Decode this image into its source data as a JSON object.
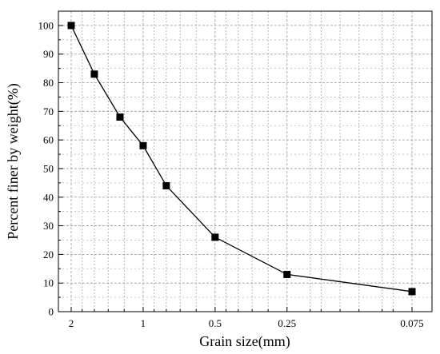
{
  "chart_data": {
    "type": "line",
    "title": "",
    "xlabel": "Grain size(mm)",
    "ylabel": "Percent finer by weight(%)",
    "x_scale": "log",
    "x_reversed": true,
    "xlim": [
      2.0,
      0.075
    ],
    "ylim": [
      0,
      105
    ],
    "grid": true,
    "x_ticks": [
      {
        "value": 2,
        "label": "2"
      },
      {
        "value": 1,
        "label": "1"
      },
      {
        "value": 0.5,
        "label": "0.5"
      },
      {
        "value": 0.25,
        "label": "0.25"
      },
      {
        "value": 0.075,
        "label": "0.075"
      }
    ],
    "y_ticks": [
      0,
      10,
      20,
      30,
      40,
      50,
      60,
      70,
      80,
      90,
      100
    ],
    "series": [
      {
        "color": "#000000",
        "marker": "square",
        "x": [
          2.0,
          1.6,
          1.25,
          1.0,
          0.8,
          0.5,
          0.25,
          0.075
        ],
        "y": [
          100,
          83,
          68,
          58,
          44,
          26,
          13,
          7
        ]
      }
    ]
  }
}
